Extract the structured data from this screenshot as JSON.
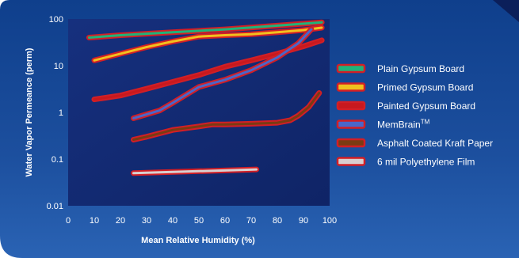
{
  "chart_data": {
    "type": "line",
    "title": "",
    "xlabel": "Mean Relative Humidity (%)",
    "ylabel": "Water Vapor Permeance (perm)",
    "xlim": [
      0,
      100
    ],
    "ylim": [
      0.01,
      100
    ],
    "yscale": "log",
    "x_ticks": [
      "0",
      "10",
      "20",
      "30",
      "40",
      "50",
      "60",
      "70",
      "80",
      "90",
      "100"
    ],
    "y_ticks": [
      "0.01",
      "0.1",
      "1",
      "10",
      "100"
    ],
    "legend_position": "right",
    "series": [
      {
        "name": "Plain Gypsum Board",
        "color": "#1fb37a",
        "points": [
          [
            8,
            40
          ],
          [
            20,
            45
          ],
          [
            40,
            52
          ],
          [
            60,
            60
          ],
          [
            80,
            72
          ],
          [
            97,
            85
          ]
        ]
      },
      {
        "name": "Primed Gypsum Board",
        "color": "#f2c01e",
        "points": [
          [
            10,
            13
          ],
          [
            20,
            18
          ],
          [
            30,
            25
          ],
          [
            40,
            33
          ],
          [
            50,
            42
          ],
          [
            60,
            45
          ],
          [
            70,
            47
          ],
          [
            80,
            52
          ],
          [
            90,
            58
          ],
          [
            97,
            65
          ]
        ]
      },
      {
        "name": "Painted Gypsum Board",
        "color": "#c8191e",
        "points": [
          [
            10,
            1.9
          ],
          [
            20,
            2.3
          ],
          [
            30,
            3.2
          ],
          [
            40,
            4.5
          ],
          [
            50,
            6.3
          ],
          [
            60,
            9.5
          ],
          [
            70,
            13
          ],
          [
            80,
            18
          ],
          [
            90,
            26
          ],
          [
            97,
            35
          ]
        ]
      },
      {
        "name": "MemBrain",
        "sup": "TM",
        "color": "#4a67c9",
        "points": [
          [
            25,
            0.75
          ],
          [
            35,
            1.1
          ],
          [
            40,
            1.6
          ],
          [
            50,
            3.5
          ],
          [
            60,
            5
          ],
          [
            70,
            8
          ],
          [
            80,
            15
          ],
          [
            88,
            30
          ],
          [
            93,
            60
          ]
        ]
      },
      {
        "name": "Asphalt Coated Kraft Paper",
        "color": "#7a3b12",
        "points": [
          [
            25,
            0.26
          ],
          [
            30,
            0.3
          ],
          [
            40,
            0.42
          ],
          [
            50,
            0.5
          ],
          [
            55,
            0.55
          ],
          [
            60,
            0.55
          ],
          [
            70,
            0.57
          ],
          [
            80,
            0.6
          ],
          [
            85,
            0.68
          ],
          [
            88,
            0.85
          ],
          [
            92,
            1.3
          ],
          [
            96,
            2.6
          ]
        ]
      },
      {
        "name": "6 mil Polyethylene Film",
        "color": "#d9cfcf",
        "points": [
          [
            25,
            0.05
          ],
          [
            72,
            0.06
          ]
        ]
      }
    ]
  }
}
